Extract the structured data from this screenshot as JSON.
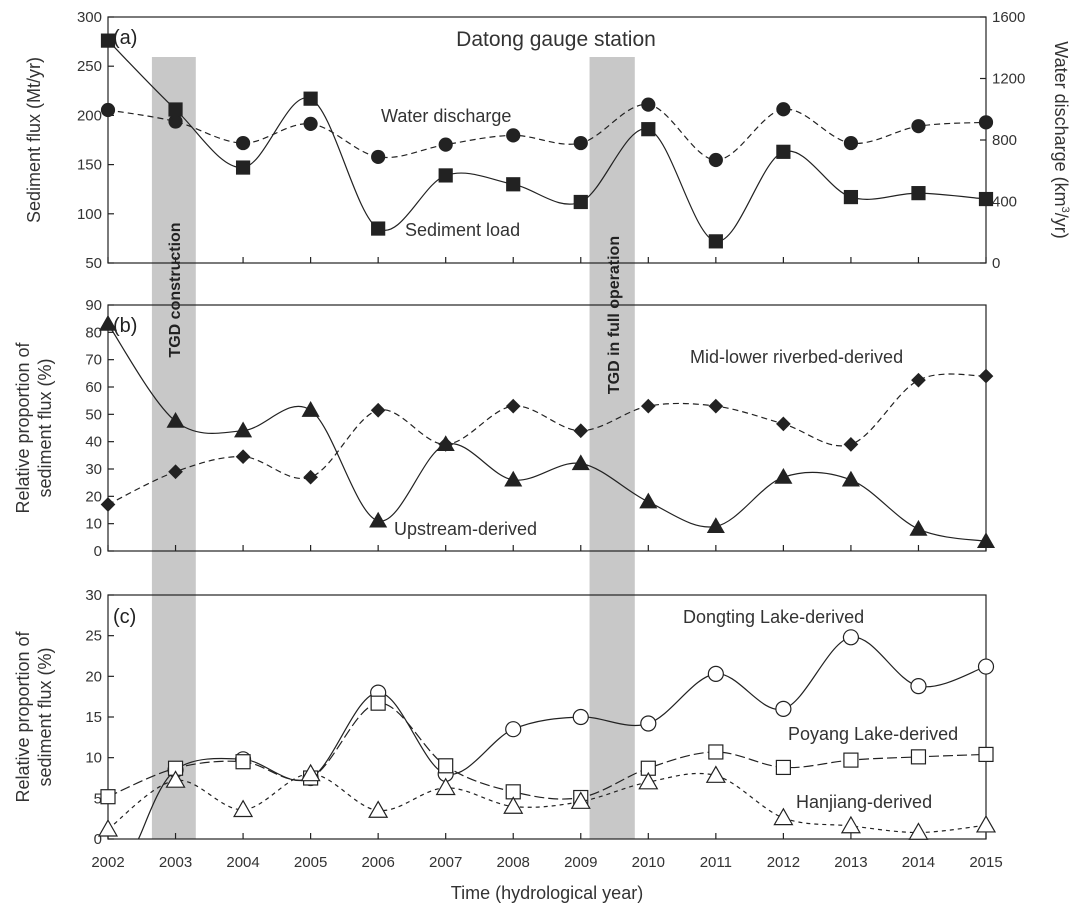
{
  "chart_data": [
    {
      "panel": "(a)",
      "type": "line",
      "title": "Datong gauge station",
      "ylabel": "Sediment flux (Mt/yr)",
      "ylabel_right_parts": [
        "Water discharge (km",
        "3",
        "/yr)"
      ],
      "ylim": [
        50,
        300
      ],
      "y_ticks": [
        50,
        100,
        150,
        200,
        250,
        300
      ],
      "y2lim": [
        0,
        1600
      ],
      "y2_ticks": [
        0,
        400,
        800,
        1200,
        1600
      ],
      "series": [
        {
          "name": "Water discharge",
          "axis": "right",
          "marker": "circle-filled",
          "line": "dashed",
          "x": [
            2002,
            2003,
            2004,
            2005,
            2006,
            2007,
            2008,
            2009,
            2010,
            2011,
            2012,
            2013,
            2014,
            2015
          ],
          "values": [
            995,
            920,
            780,
            905,
            690,
            770,
            830,
            780,
            1030,
            670,
            1000,
            780,
            890,
            915
          ]
        },
        {
          "name": "Sediment load",
          "axis": "left",
          "marker": "square-filled",
          "line": "solid",
          "x": [
            2002,
            2003,
            2004,
            2005,
            2006,
            2007,
            2008,
            2009,
            2010,
            2011,
            2012,
            2013,
            2014,
            2015
          ],
          "values": [
            276,
            206,
            147,
            217,
            85,
            139,
            130,
            112,
            186,
            72,
            163,
            117,
            121,
            115
          ]
        }
      ],
      "labels": [
        "Water discharge",
        "Sediment load"
      ]
    },
    {
      "panel": "(b)",
      "type": "line",
      "ylabel_lines": [
        "Relative proportion of",
        "sediment flux (%)"
      ],
      "ylim": [
        0,
        90
      ],
      "y_ticks": [
        0,
        10,
        20,
        30,
        40,
        50,
        60,
        70,
        80,
        90
      ],
      "series": [
        {
          "name": "Mid-lower riverbed-derived",
          "marker": "diamond-filled",
          "line": "dashed",
          "x": [
            2002,
            2003,
            2004,
            2005,
            2006,
            2007,
            2008,
            2009,
            2010,
            2011,
            2012,
            2013,
            2014,
            2015
          ],
          "values": [
            17,
            29,
            34.5,
            27,
            51.5,
            39,
            53,
            44,
            53,
            53,
            46.5,
            39,
            62.5,
            64
          ]
        },
        {
          "name": "Upstream-derived",
          "marker": "triangle-filled",
          "line": "solid",
          "x": [
            2002,
            2003,
            2004,
            2005,
            2006,
            2007,
            2008,
            2009,
            2010,
            2011,
            2012,
            2013,
            2014,
            2015
          ],
          "values": [
            83,
            47.5,
            44,
            51.5,
            11,
            39,
            26,
            32,
            18,
            9,
            27,
            26,
            8,
            3.5
          ]
        }
      ],
      "labels": [
        "Mid-lower riverbed-derived",
        "Upstream-derived"
      ]
    },
    {
      "panel": "(c)",
      "type": "line",
      "ylabel_lines": [
        "Relative proportion of",
        "sediment flux (%)"
      ],
      "xlabel": "Time (hydrological year)",
      "ylim": [
        0,
        30
      ],
      "y_ticks": [
        0,
        5,
        10,
        15,
        20,
        25,
        30
      ],
      "x_ticks": [
        2002,
        2003,
        2004,
        2005,
        2006,
        2007,
        2008,
        2009,
        2010,
        2011,
        2012,
        2013,
        2014,
        2015
      ],
      "series": [
        {
          "name": "Dongting Lake-derived",
          "marker": "circle-open",
          "line": "solid",
          "x": [
            2003,
            2004,
            2005,
            2006,
            2007,
            2008,
            2009,
            2010,
            2011,
            2012,
            2013,
            2014,
            2015
          ],
          "values": [
            8.5,
            9.8,
            7.5,
            18,
            8,
            13.5,
            15,
            14.2,
            20.3,
            16,
            24.8,
            18.8,
            21.2
          ],
          "curve_start": [
            2002.45,
            0
          ]
        },
        {
          "name": "Poyang Lake-derived",
          "marker": "square-open",
          "line": "longdash",
          "x": [
            2002,
            2003,
            2004,
            2005,
            2006,
            2007,
            2008,
            2009,
            2010,
            2011,
            2012,
            2013,
            2014,
            2015
          ],
          "values": [
            5.2,
            8.7,
            9.5,
            7.5,
            16.7,
            9,
            5.8,
            5.1,
            8.7,
            10.7,
            8.8,
            9.7,
            10.1,
            10.4
          ]
        },
        {
          "name": "Hanjiang-derived",
          "marker": "triangle-open",
          "line": "shortdash",
          "x": [
            2002,
            2003,
            2004,
            2005,
            2006,
            2007,
            2008,
            2009,
            2010,
            2011,
            2012,
            2013,
            2014,
            2015
          ],
          "values": [
            1.2,
            7.2,
            3.6,
            8,
            3.5,
            6.3,
            4,
            4.6,
            7,
            7.8,
            2.6,
            1.6,
            0.8,
            1.7
          ]
        }
      ],
      "labels": [
        "Dongting Lake-derived",
        "Poyang Lake-derived",
        "Hanjiang-derived"
      ]
    }
  ],
  "bands": [
    {
      "label": "TGD construction",
      "x_range": [
        2002.65,
        2003.3
      ]
    },
    {
      "label": "TGD in full operation",
      "x_range": [
        2009.13,
        2009.8
      ]
    }
  ],
  "colors": {
    "line": "#222222",
    "band": "#c8c8c8",
    "text": "#333333"
  }
}
